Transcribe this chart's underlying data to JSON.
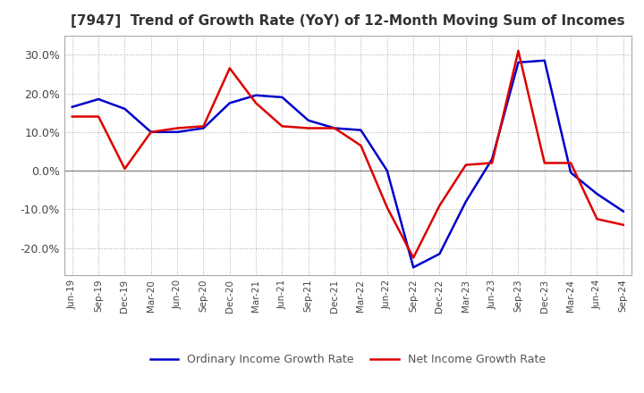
{
  "title": "[7947]  Trend of Growth Rate (YoY) of 12-Month Moving Sum of Incomes",
  "title_fontsize": 11,
  "ylim": [
    -0.27,
    0.35
  ],
  "yticks": [
    -0.2,
    -0.1,
    0.0,
    0.1,
    0.2,
    0.3
  ],
  "ytick_labels": [
    "-20.0%",
    "-10.0%",
    "0.0%",
    "10.0%",
    "20.0%",
    "30.0%"
  ],
  "background_color": "#ffffff",
  "grid_color": "#aaaaaa",
  "ordinary_color": "#0000cc",
  "net_color": "#dd0000",
  "legend_ordinary": "Ordinary Income Growth Rate",
  "legend_net": "Net Income Growth Rate",
  "x_labels": [
    "Jun-19",
    "Sep-19",
    "Dec-19",
    "Mar-20",
    "Jun-20",
    "Sep-20",
    "Dec-20",
    "Mar-21",
    "Jun-21",
    "Sep-21",
    "Dec-21",
    "Mar-22",
    "Jun-22",
    "Sep-22",
    "Dec-22",
    "Mar-23",
    "Jun-23",
    "Sep-23",
    "Dec-23",
    "Mar-24",
    "Jun-24",
    "Sep-24"
  ],
  "ordinary_income": [
    0.165,
    0.185,
    0.16,
    0.1,
    0.1,
    0.11,
    0.175,
    0.195,
    0.19,
    0.13,
    0.11,
    0.105,
    0.0,
    -0.25,
    -0.215,
    -0.08,
    0.03,
    0.28,
    0.285,
    -0.005,
    -0.06,
    -0.105
  ],
  "net_income": [
    0.14,
    0.14,
    0.005,
    0.1,
    0.11,
    0.115,
    0.265,
    0.175,
    0.115,
    0.11,
    0.11,
    0.065,
    -0.095,
    -0.225,
    -0.09,
    0.015,
    0.02,
    0.31,
    0.02,
    0.02,
    -0.125,
    -0.14
  ]
}
